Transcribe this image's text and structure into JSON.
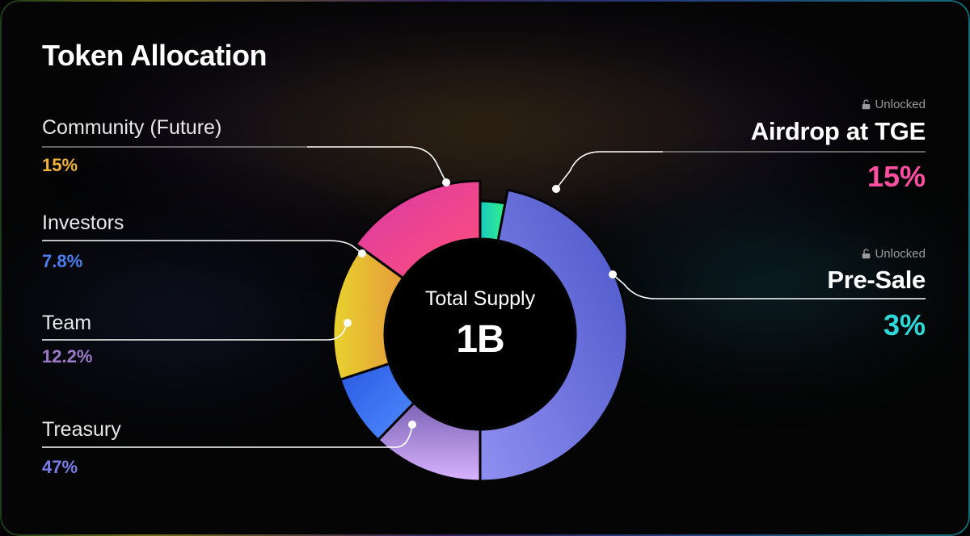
{
  "title": "Token Allocation",
  "center": {
    "label": "Total Supply",
    "value": "1B"
  },
  "unlock_text": "Unlocked",
  "chart_data": {
    "type": "pie",
    "title": "Token Allocation",
    "slices": [
      {
        "name": "Airdrop at TGE",
        "value": 15,
        "label": "15%",
        "color": "#e8339a",
        "unlocked": true
      },
      {
        "name": "Pre-Sale",
        "value": 3,
        "label": "3%",
        "color": "#1fe6b2",
        "unlocked": true
      },
      {
        "name": "Treasury",
        "value": 47,
        "label": "47%",
        "color": "#6f74e0",
        "unlocked": false
      },
      {
        "name": "Team",
        "value": 12.2,
        "label": "12.2%",
        "color": "#b48ee6",
        "unlocked": false
      },
      {
        "name": "Investors",
        "value": 7.8,
        "label": "7.8%",
        "color": "#3a66e8",
        "unlocked": false
      },
      {
        "name": "Community (Future)",
        "value": 15,
        "label": "15%",
        "color": "#e6c22a",
        "unlocked": false
      }
    ]
  },
  "legend_colors": {
    "Community (Future)": "#f0b43a",
    "Investors": "#4a7ef0",
    "Team": "#9c7cc6",
    "Treasury": "#7b7ee8",
    "Airdrop at TGE": "#ff4fa0",
    "Pre-Sale": "#2fd8d8"
  }
}
